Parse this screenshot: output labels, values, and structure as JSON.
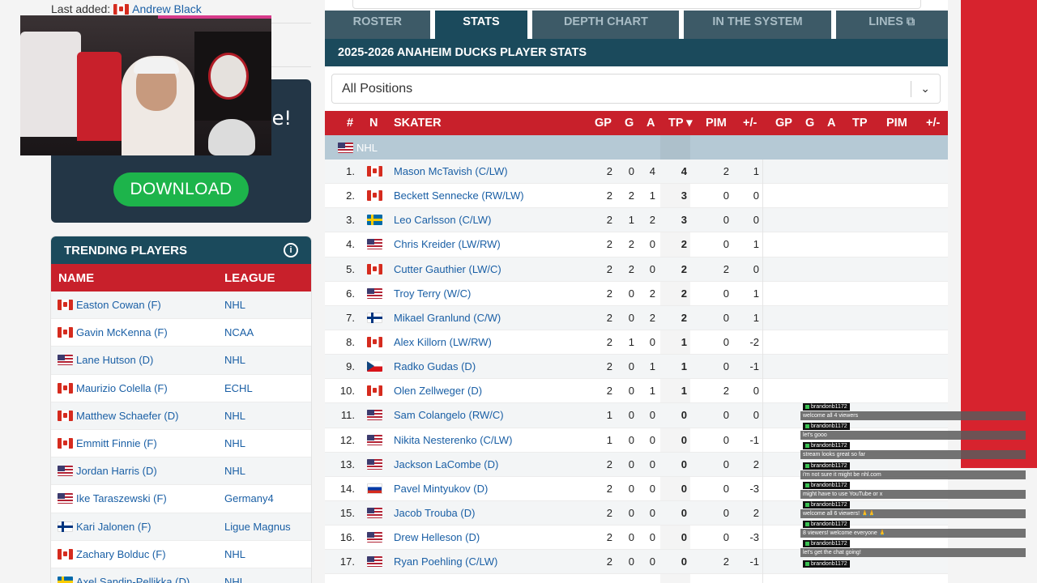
{
  "last_added": {
    "label": "Last added:",
    "flag": "CA",
    "name": "Andrew Black"
  },
  "promo": {
    "fragment": "ve!",
    "download_label": "DOWNLOAD"
  },
  "trending": {
    "title": "TRENDING PLAYERS",
    "info": "i",
    "columns": {
      "name": "NAME",
      "league": "LEAGUE"
    },
    "rows": [
      {
        "flag": "CA",
        "name": "Easton Cowan (F)",
        "league": "NHL"
      },
      {
        "flag": "CA",
        "name": "Gavin McKenna (F)",
        "league": "NCAA"
      },
      {
        "flag": "US",
        "name": "Lane Hutson (D)",
        "league": "NHL"
      },
      {
        "flag": "CA",
        "name": "Maurizio Colella (F)",
        "league": "ECHL"
      },
      {
        "flag": "CA",
        "name": "Matthew Schaefer (D)",
        "league": "NHL"
      },
      {
        "flag": "CA",
        "name": "Emmitt Finnie (F)",
        "league": "NHL"
      },
      {
        "flag": "US",
        "name": "Jordan Harris (D)",
        "league": "NHL"
      },
      {
        "flag": "US",
        "name": "Ike Taraszewski (F)",
        "league": "Germany4"
      },
      {
        "flag": "FI",
        "name": "Kari Jalonen (F)",
        "league": "Ligue Magnus"
      },
      {
        "flag": "CA",
        "name": "Zachary Bolduc (F)",
        "league": "NHL"
      },
      {
        "flag": "SE",
        "name": "Axel Sandin-Pellikka (D)",
        "league": "NHL"
      }
    ]
  },
  "tabs": [
    {
      "label": "ROSTER",
      "active": false
    },
    {
      "label": "STATS",
      "active": true
    },
    {
      "label": "DEPTH CHART",
      "active": false
    },
    {
      "label": "IN THE SYSTEM",
      "active": false
    },
    {
      "label": "LINES ⧉",
      "active": false
    }
  ],
  "stats_title": "2025-2026 ANAHEIM DUCKS PLAYER STATS",
  "position_select": {
    "value": "All Positions",
    "chevron": "⌄"
  },
  "table_headers": {
    "num": "#",
    "n": "N",
    "skater": "SKATER",
    "gp": "GP",
    "g": "G",
    "a": "A",
    "tp": "TP ▾",
    "pim": "PIM",
    "pm": "+/-",
    "gp2": "GP",
    "g2": "G",
    "a2": "A",
    "tp2": "TP",
    "pim2": "PIM",
    "pm2": "+/-"
  },
  "league_group": {
    "flag": "US",
    "label": "NHL"
  },
  "players": [
    {
      "rank": "1.",
      "flag": "CA",
      "name": "Mason McTavish (C/LW)",
      "gp": "2",
      "g": "0",
      "a": "4",
      "tp": "4",
      "pim": "2",
      "pm": "1"
    },
    {
      "rank": "2.",
      "flag": "CA",
      "name": "Beckett Sennecke (RW/LW)",
      "gp": "2",
      "g": "2",
      "a": "1",
      "tp": "3",
      "pim": "0",
      "pm": "0"
    },
    {
      "rank": "3.",
      "flag": "SE",
      "name": "Leo Carlsson (C/LW)",
      "gp": "2",
      "g": "1",
      "a": "2",
      "tp": "3",
      "pim": "0",
      "pm": "0"
    },
    {
      "rank": "4.",
      "flag": "US",
      "name": "Chris Kreider (LW/RW)",
      "gp": "2",
      "g": "2",
      "a": "0",
      "tp": "2",
      "pim": "0",
      "pm": "1"
    },
    {
      "rank": "5.",
      "flag": "CA",
      "name": "Cutter Gauthier (LW/C)",
      "gp": "2",
      "g": "2",
      "a": "0",
      "tp": "2",
      "pim": "2",
      "pm": "0"
    },
    {
      "rank": "6.",
      "flag": "US",
      "name": "Troy Terry (W/C)",
      "gp": "2",
      "g": "0",
      "a": "2",
      "tp": "2",
      "pim": "0",
      "pm": "1"
    },
    {
      "rank": "7.",
      "flag": "FI",
      "name": "Mikael Granlund (C/W)",
      "gp": "2",
      "g": "0",
      "a": "2",
      "tp": "2",
      "pim": "0",
      "pm": "1"
    },
    {
      "rank": "8.",
      "flag": "CA",
      "name": "Alex Killorn (LW/RW)",
      "gp": "2",
      "g": "1",
      "a": "0",
      "tp": "1",
      "pim": "0",
      "pm": "-2"
    },
    {
      "rank": "9.",
      "flag": "CZ",
      "name": "Radko Gudas (D)",
      "gp": "2",
      "g": "0",
      "a": "1",
      "tp": "1",
      "pim": "0",
      "pm": "-1"
    },
    {
      "rank": "10.",
      "flag": "CA",
      "name": "Olen Zellweger (D)",
      "gp": "2",
      "g": "0",
      "a": "1",
      "tp": "1",
      "pim": "2",
      "pm": "0"
    },
    {
      "rank": "11.",
      "flag": "US",
      "name": "Sam Colangelo (RW/C)",
      "gp": "1",
      "g": "0",
      "a": "0",
      "tp": "0",
      "pim": "0",
      "pm": "0"
    },
    {
      "rank": "12.",
      "flag": "US",
      "name": "Nikita Nesterenko (C/LW)",
      "gp": "1",
      "g": "0",
      "a": "0",
      "tp": "0",
      "pim": "0",
      "pm": "-1"
    },
    {
      "rank": "13.",
      "flag": "US",
      "name": "Jackson LaCombe (D)",
      "gp": "2",
      "g": "0",
      "a": "0",
      "tp": "0",
      "pim": "0",
      "pm": "2"
    },
    {
      "rank": "14.",
      "flag": "RU",
      "name": "Pavel Mintyukov (D)",
      "gp": "2",
      "g": "0",
      "a": "0",
      "tp": "0",
      "pim": "0",
      "pm": "-3"
    },
    {
      "rank": "15.",
      "flag": "US",
      "name": "Jacob Trouba (D)",
      "gp": "2",
      "g": "0",
      "a": "0",
      "tp": "0",
      "pim": "0",
      "pm": "2"
    },
    {
      "rank": "16.",
      "flag": "US",
      "name": "Drew Helleson (D)",
      "gp": "2",
      "g": "0",
      "a": "0",
      "tp": "0",
      "pim": "0",
      "pm": "-3"
    },
    {
      "rank": "17.",
      "flag": "US",
      "name": "Ryan Poehling (C/LW)",
      "gp": "2",
      "g": "0",
      "a": "0",
      "tp": "0",
      "pim": "2",
      "pm": "-1"
    }
  ],
  "chat": [
    {
      "user": "brandonb1172",
      "text": "welcome all 4 viewers"
    },
    {
      "user": "brandonb1172",
      "text": "let's gooo"
    },
    {
      "user": "brandonb1172",
      "text": "stream looks great so far"
    },
    {
      "user": "brandonb1172",
      "text": "i'm not sure it might be nhl.com"
    },
    {
      "user": "brandonb1172",
      "text": "might have to use YouTube or x"
    },
    {
      "user": "brandonb1172",
      "text": "welcome all 6 viewers! 🙏🙏"
    },
    {
      "user": "brandonb1172",
      "text": "8 viewers! welcome everyone 🙏"
    },
    {
      "user": "brandonb1172",
      "text": "let's get the chat going!"
    },
    {
      "user": "brandonb1172",
      "text": ""
    }
  ],
  "colors": {
    "accent_red": "#c8202b",
    "navy": "#1b4a5c",
    "link": "#1a5fa5",
    "download_green": "#1db44b"
  }
}
